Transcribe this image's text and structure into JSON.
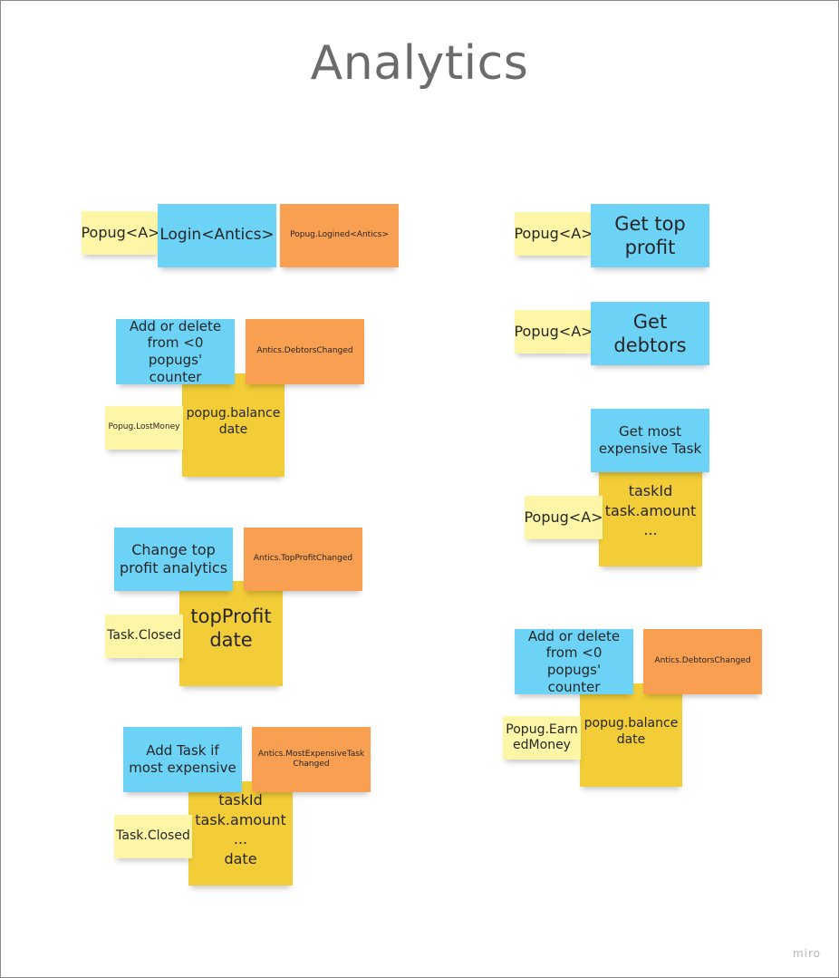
{
  "board": {
    "title": "Analytics",
    "brand": "miro"
  },
  "colors": {
    "command": "#6cd3f6",
    "event": "#f89f52",
    "read_model": "#f2cd37",
    "actor": "#fdf6a7"
  },
  "notes": {
    "login_actor": "Popug<A>",
    "login_command": "Login<Antics>",
    "login_event": "Popug.Logined<Antics>",
    "debtors_command": "Add or delete\nfrom <0 popugs'\ncounter",
    "debtors_event": "Antics.DebtorsChanged",
    "debtors_model": "popug.balance\ndate",
    "debtors_trigger": "Popug.LostMoney",
    "top_command": "Change top\nprofit analytics",
    "top_event": "Antics.TopProfitChanged",
    "top_model": "topProfit\ndate",
    "top_trigger": "Task.Closed",
    "expensive_command": "Add Task if\nmost expensive",
    "expensive_event": "Antics.MostExpensiveTask\nChanged",
    "expensive_model": "taskId\ntask.amount\n...\ndate",
    "expensive_trigger": "Task.Closed",
    "get_top_actor": "Popug<A>",
    "get_top_command": "Get top\nprofit",
    "get_debtors_actor": "Popug<A>",
    "get_debtors_command": "Get\ndebtors",
    "get_expensive_command": "Get most\nexpensive Task",
    "get_expensive_model": "taskId\ntask.amount\n...",
    "get_expensive_actor": "Popug<A>",
    "earned_command": "Add or delete\nfrom <0 popugs'\ncounter",
    "earned_event": "Antics.DebtorsChanged",
    "earned_model": "popug.balance\ndate",
    "earned_trigger": "Popug.Earn\nedMoney"
  }
}
